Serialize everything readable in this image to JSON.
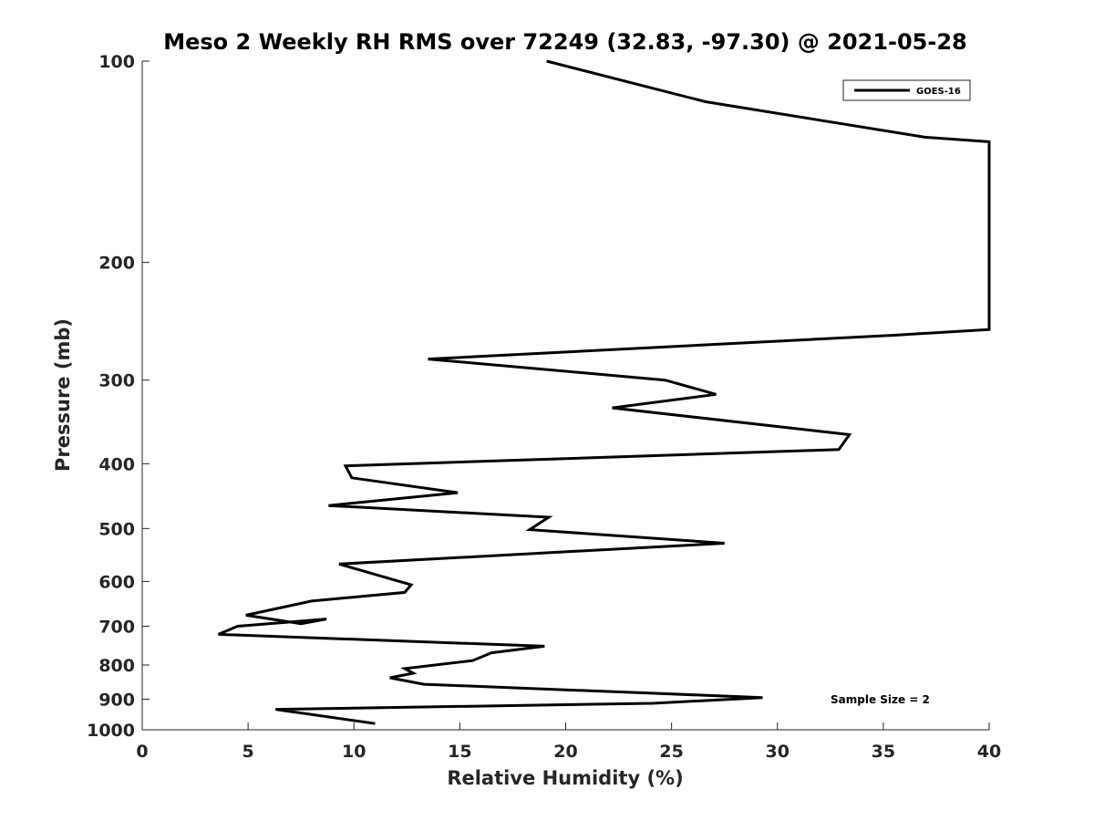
{
  "chart_data": {
    "type": "line",
    "title": "Meso 2 Weekly RH RMS over 72249 (32.83, -97.30) @ 2021-05-28",
    "xlabel": "Relative Humidity (%)",
    "ylabel": "Pressure (mb)",
    "xlim": [
      0,
      40
    ],
    "ylim": [
      100,
      1000
    ],
    "y_scale": "log",
    "y_reversed": true,
    "xticks": [
      0,
      5,
      10,
      15,
      20,
      25,
      30,
      35,
      40
    ],
    "yticks": [
      100,
      200,
      300,
      400,
      500,
      600,
      700,
      800,
      900,
      1000
    ],
    "grid": false,
    "legend_position": "top-right",
    "annotation": "Sample Size = 2",
    "colors": {
      "line": "#000000",
      "axis": "#262626"
    },
    "series": [
      {
        "name": "GOES-16",
        "x": [
          19.1,
          26.6,
          37.0,
          40.0,
          40.0,
          35.5,
          13.5,
          24.7,
          27.1,
          22.2,
          33.4,
          32.9,
          9.6,
          9.9,
          14.9,
          8.8,
          19.2,
          18.3,
          27.5,
          9.3,
          12.7,
          12.4,
          8.0,
          4.9,
          7.5,
          8.7,
          4.5,
          3.6,
          19.0,
          16.5,
          15.6,
          12.4,
          12.8,
          11.7,
          13.3,
          29.3,
          24.1,
          6.3,
          11.0
        ],
        "y": [
          100,
          115,
          130,
          132,
          252,
          257,
          279,
          300,
          315,
          330,
          362,
          381,
          403,
          420,
          442,
          462,
          481,
          502,
          526,
          565,
          607,
          623,
          642,
          674,
          694,
          683,
          700,
          720,
          750,
          767,
          788,
          810,
          823,
          836,
          855,
          895,
          913,
          932,
          979
        ]
      }
    ]
  }
}
